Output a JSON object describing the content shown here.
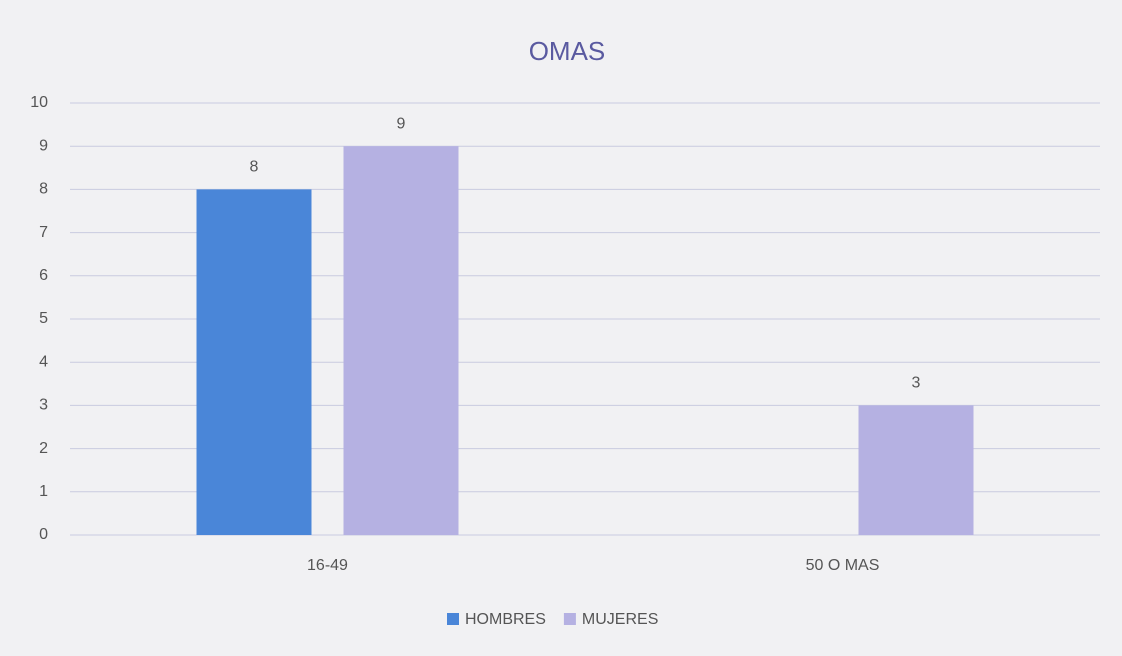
{
  "chart_data": {
    "type": "bar",
    "title": "OMAS",
    "categories": [
      "16-49",
      "50 O MAS"
    ],
    "series": [
      {
        "name": "HOMBRES",
        "color": "#4a86d8",
        "values": [
          8,
          null
        ]
      },
      {
        "name": "MUJERES",
        "color": "#b5b1e2",
        "values": [
          9,
          3
        ]
      }
    ],
    "ylim": [
      0,
      10
    ],
    "yticks": [
      0,
      1,
      2,
      3,
      4,
      5,
      6,
      7,
      8,
      9,
      10
    ],
    "grid": true,
    "legend": "bottom"
  }
}
